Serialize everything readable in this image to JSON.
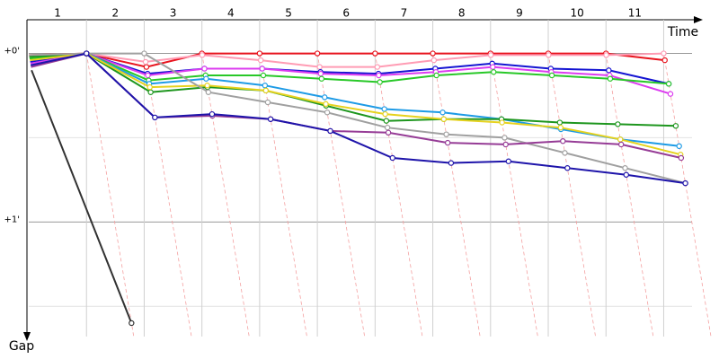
{
  "chart_data": {
    "type": "line",
    "x_label": "Time",
    "y_label": "Gap",
    "x": [
      0,
      1,
      2,
      3,
      4,
      5,
      6,
      7,
      8,
      9,
      10,
      11
    ],
    "xlim": [
      0,
      11.6
    ],
    "xticks": [
      {
        "value": 0.5,
        "label": "1"
      },
      {
        "value": 1.5,
        "label": "2"
      },
      {
        "value": 2.5,
        "label": "3"
      },
      {
        "value": 3.5,
        "label": "4"
      },
      {
        "value": 4.5,
        "label": "5"
      },
      {
        "value": 5.5,
        "label": "6"
      },
      {
        "value": 6.5,
        "label": "7"
      },
      {
        "value": 7.5,
        "label": "8"
      },
      {
        "value": 8.5,
        "label": "9"
      },
      {
        "value": 9.5,
        "label": "10"
      },
      {
        "value": 10.5,
        "label": "11"
      }
    ],
    "ylim": [
      -0.2,
      1.68
    ],
    "yticks": [
      {
        "value": 0,
        "label": "+0'"
      },
      {
        "value": 1,
        "label": "+1'"
      }
    ],
    "minor_yticks": [
      0.5,
      1.5
    ],
    "grid": true,
    "series": [
      {
        "color": "#e8141e",
        "values": [
          0.01,
          0,
          0.08,
          0,
          0,
          0,
          0,
          0,
          0,
          0,
          0,
          0.04
        ]
      },
      {
        "color": "#ff9cb4",
        "values": [
          0.02,
          0,
          0.05,
          0.01,
          0.04,
          0.08,
          0.08,
          0.04,
          0.01,
          0.01,
          0.01,
          0
        ]
      },
      {
        "color": "#1414d2",
        "values": [
          0.05,
          0,
          0.12,
          0.09,
          0.09,
          0.11,
          0.12,
          0.09,
          0.06,
          0.09,
          0.1,
          0.18
        ]
      },
      {
        "color": "#dc3cf0",
        "values": [
          0.06,
          0,
          0.13,
          0.09,
          0.09,
          0.12,
          0.13,
          0.11,
          0.08,
          0.11,
          0.13,
          0.24
        ]
      },
      {
        "color": "#28c828",
        "values": [
          0.03,
          0,
          0.16,
          0.13,
          0.13,
          0.15,
          0.17,
          0.13,
          0.11,
          0.13,
          0.15,
          0.18
        ]
      },
      {
        "color": "#1e9be6",
        "values": [
          0.07,
          0,
          0.18,
          0.15,
          0.19,
          0.26,
          0.33,
          0.35,
          0.39,
          0.45,
          0.51,
          0.55
        ]
      },
      {
        "color": "#1e961e",
        "values": [
          0.02,
          0,
          0.23,
          0.2,
          0.22,
          0.31,
          0.4,
          0.39,
          0.39,
          0.41,
          0.42,
          0.43
        ]
      },
      {
        "color": "#e6d21e",
        "values": [
          0.04,
          0,
          0.2,
          0.19,
          0.22,
          0.3,
          0.36,
          0.39,
          0.41,
          0.44,
          0.51,
          0.6
        ]
      },
      {
        "color": "#a0a0a0",
        "values": [
          0.01,
          0,
          0,
          0.23,
          0.29,
          0.35,
          0.44,
          0.48,
          0.5,
          0.59,
          0.68,
          0.77
        ]
      },
      {
        "color": "#963c96",
        "values": [
          0.08,
          0,
          0.38,
          0.37,
          0.39,
          0.46,
          0.47,
          0.53,
          0.54,
          0.52,
          0.54,
          0.62
        ]
      },
      {
        "color": "#1e14aa",
        "values": [
          0.07,
          0,
          0.38,
          0.36,
          0.39,
          0.46,
          0.62,
          0.65,
          0.64,
          0.68,
          0.72,
          0.77
        ]
      },
      {
        "color": "#323232",
        "values": [
          0.1,
          1.6,
          null,
          null,
          null,
          null,
          null,
          null,
          null,
          null,
          null,
          null
        ]
      }
    ]
  }
}
